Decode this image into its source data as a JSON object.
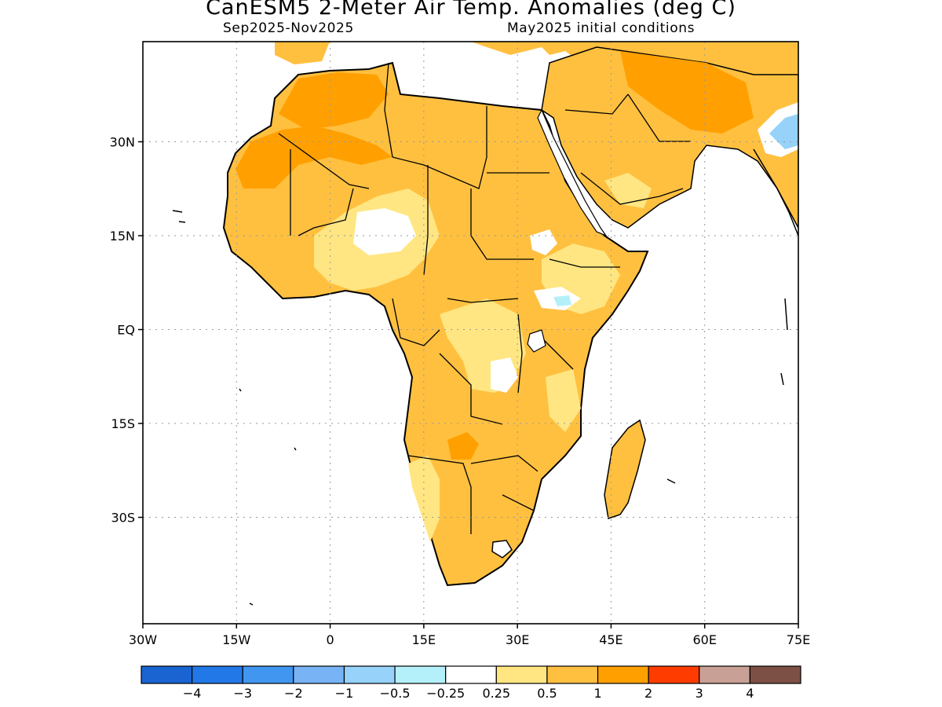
{
  "title": "CanESM5 2-Meter Air Temp. Anomalies (deg C)",
  "subtitle_left": "Sep2025-Nov2025",
  "subtitle_right": "May2025 initial conditions",
  "map": {
    "lon_range": [
      -30,
      75
    ],
    "lat_range": [
      -47,
      46
    ],
    "lat_ticks": [
      {
        "value": 30,
        "label": "30N"
      },
      {
        "value": 15,
        "label": "15N"
      },
      {
        "value": 0,
        "label": "EQ"
      },
      {
        "value": -15,
        "label": "15S"
      },
      {
        "value": -30,
        "label": "30S"
      }
    ],
    "lon_ticks": [
      {
        "value": -30,
        "label": "30W"
      },
      {
        "value": -15,
        "label": "15W"
      },
      {
        "value": 0,
        "label": "0"
      },
      {
        "value": 15,
        "label": "15E"
      },
      {
        "value": 30,
        "label": "30E"
      },
      {
        "value": 45,
        "label": "45E"
      },
      {
        "value": 60,
        "label": "60E"
      },
      {
        "value": 75,
        "label": "75E"
      }
    ],
    "grid": "dotted"
  },
  "colorbar": {
    "colors": [
      "#1a64d2",
      "#2378e8",
      "#4196f0",
      "#78b4f5",
      "#96d2fa",
      "#b4f0fa",
      "#ffffff",
      "#ffe682",
      "#ffc040",
      "#ffa000",
      "#ff3c00",
      "#c8a096",
      "#7d5046"
    ],
    "labels": [
      "-4",
      "-3",
      "-2",
      "-1",
      "-0.5",
      "-0.25",
      "0.25",
      "0.5",
      "1",
      "2",
      "3",
      "4"
    ]
  },
  "legend_colors": {
    "near_zero": "#ffffff",
    "light_warm": "#ffe682",
    "warm": "#ffc040",
    "warmer": "#ffa000",
    "light_cool": "#b4f0fa",
    "cool": "#96d2fa"
  }
}
